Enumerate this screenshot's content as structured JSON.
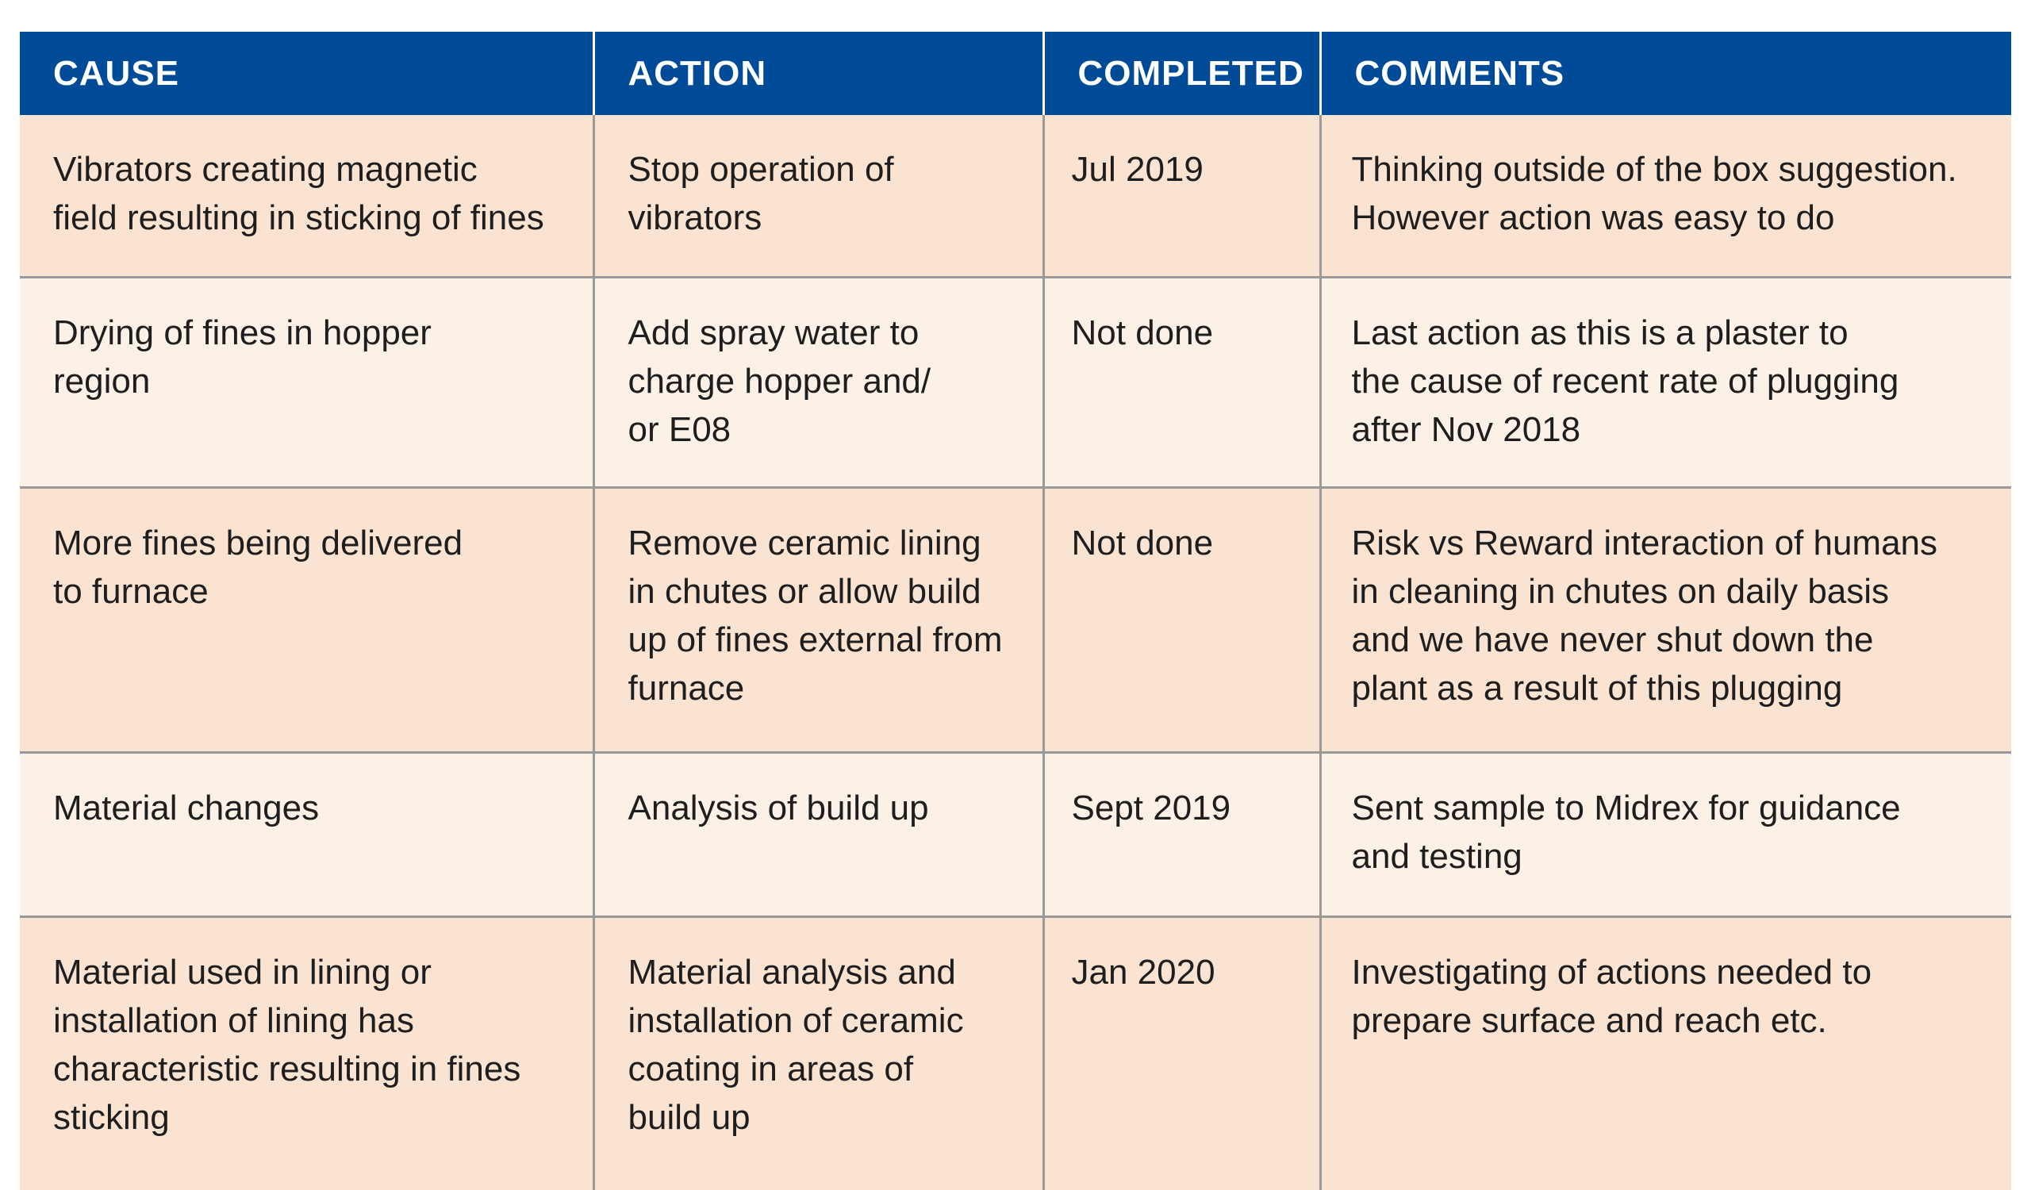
{
  "table": {
    "headers": [
      "CAUSE",
      "ACTION",
      "COMPLETED",
      "COMMENTS"
    ],
    "rows": [
      {
        "cause": [
          "Vibrators creating magnetic",
          "field resulting in sticking of fines"
        ],
        "action": [
          "Stop operation of",
          "vibrators"
        ],
        "completed": "Jul 2019",
        "comments": [
          "Thinking outside of the box suggestion.",
          "However action was easy to do"
        ]
      },
      {
        "cause": [
          "Drying of fines in hopper",
          "region"
        ],
        "action": [
          "Add spray water to",
          "charge hopper and/",
          "or E08"
        ],
        "completed": "Not done",
        "comments": [
          "Last action as this is a plaster to",
          "the cause of recent rate of plugging",
          "after Nov 2018"
        ]
      },
      {
        "cause": [
          "More fines being delivered",
          "to furnace"
        ],
        "action": [
          "Remove ceramic lining",
          "in chutes or allow build",
          "up of fines external from",
          "furnace"
        ],
        "completed": "Not done",
        "comments": [
          "Risk vs Reward interaction of humans",
          "in cleaning in chutes on daily basis",
          "and we have never shut down the",
          "plant as a result of this plugging"
        ]
      },
      {
        "cause": [
          "Material changes"
        ],
        "action": [
          "Analysis of build up"
        ],
        "completed": "Sept 2019",
        "comments": [
          "Sent sample to Midrex for guidance",
          "and testing"
        ]
      },
      {
        "cause": [
          "Material used in lining or",
          "installation of lining has",
          "characteristic resulting in fines",
          "sticking"
        ],
        "action": [
          "Material analysis and",
          "installation of ceramic",
          "coating in areas of",
          "build up"
        ],
        "completed": "Jan 2020",
        "comments": [
          "Investigating of actions needed to",
          "prepare surface and reach etc."
        ]
      }
    ]
  },
  "colors": {
    "header_bg": "#004b97",
    "header_text": "#ffffff",
    "row_odd_bg": "#fbe3d2",
    "row_even_bg": "#fcf1e7",
    "grid_line": "#9a9a9a"
  }
}
